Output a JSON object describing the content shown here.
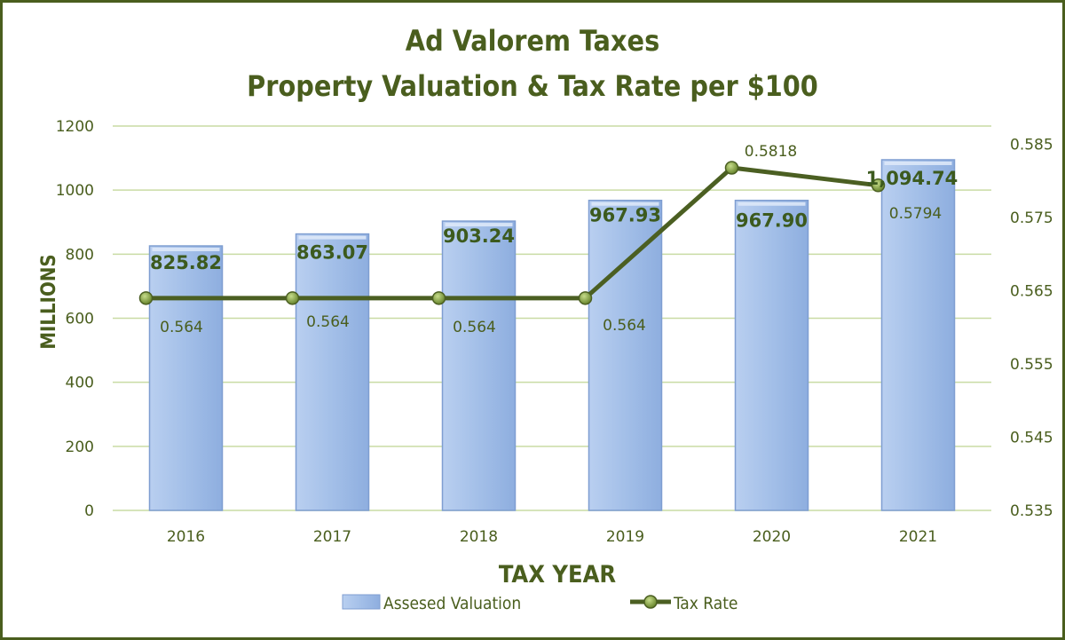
{
  "colors": {
    "bar_fill": "#a3bfe8",
    "bar_stroke": "#7f9ed1",
    "line": "#4b5f22",
    "marker": "#7a9a3a",
    "grid": "#c9dba4",
    "text": "#4a5e1e",
    "frame": "#4a5e1e"
  },
  "chart_data": {
    "type": "bar+line",
    "title_lines": [
      "Ad Valorem Taxes",
      "Property Valuation & Tax Rate per $100"
    ],
    "xlabel": "TAX YEAR",
    "ylabel": "MILLIONS",
    "categories": [
      "2016",
      "2017",
      "2018",
      "2019",
      "2020",
      "2021"
    ],
    "y_ticks": [
      "0",
      "200",
      "400",
      "600",
      "800",
      "1000",
      "1200"
    ],
    "ylim": [
      0,
      1200
    ],
    "y2_ticks": [
      "0.535",
      "0.545",
      "0.555",
      "0.565",
      "0.575",
      "0.585"
    ],
    "y2lim": [
      0.535,
      0.5875
    ],
    "grid": true,
    "legend_position": "bottom",
    "series": [
      {
        "name": "Assesed Valuation",
        "type": "bar",
        "axis": "left",
        "values": [
          825.82,
          863.07,
          903.24,
          967.93,
          967.9,
          1094.74
        ],
        "labels": [
          "825.82",
          "863.07",
          "903.24",
          "967.93",
          "967.90",
          "1,094.74"
        ]
      },
      {
        "name": "Tax Rate",
        "type": "line",
        "axis": "right",
        "values": [
          0.564,
          0.564,
          0.564,
          0.564,
          0.5818,
          0.5794
        ],
        "labels": [
          "0.564",
          "0.564",
          "0.564",
          "0.564",
          "0.5818",
          "0.5794"
        ]
      }
    ]
  }
}
